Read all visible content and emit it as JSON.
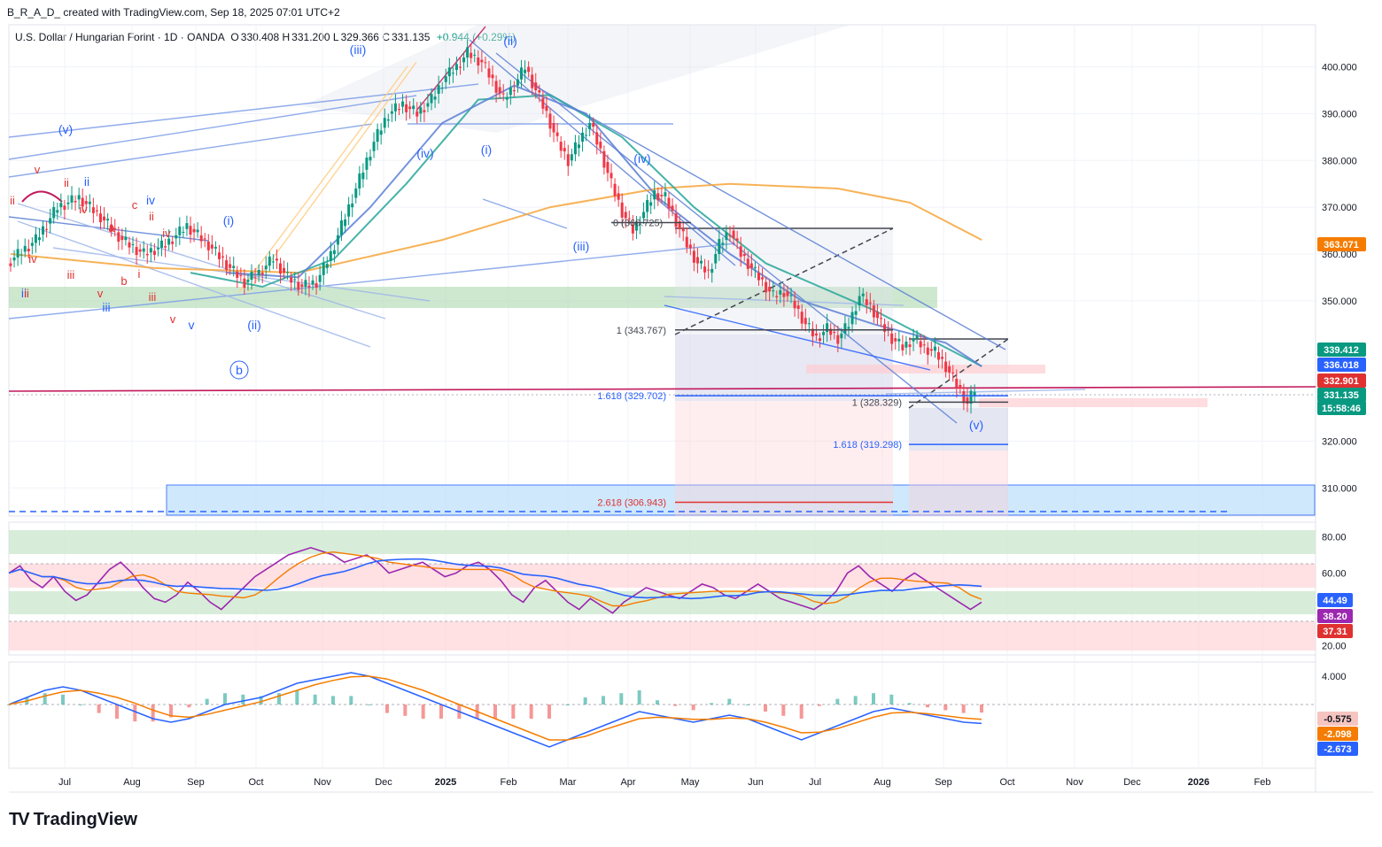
{
  "header": {
    "attribution": "B_R_A_D_ created with TradingView.com, Sep 18, 2025 07:01 UTC+2",
    "symbol": "U.S. Dollar / Hungarian Forint · 1D · OANDA",
    "o_label": "O",
    "o_value": "330.408",
    "h_label": "H",
    "h_value": "331.200",
    "l_label": "L",
    "l_value": "329.366",
    "c_label": "C",
    "c_value": "331.135",
    "change": "+0.944 (+0.29%)"
  },
  "brand": {
    "logo": "TV",
    "name": "TradingView"
  },
  "chart_data": {
    "type": "line",
    "price_axis": [
      "400.000",
      "390.000",
      "380.000",
      "370.000",
      "360.000",
      "350.000",
      "320.000",
      "310.000"
    ],
    "price_ticks": [
      400,
      390,
      380,
      370,
      360,
      350,
      320,
      310
    ],
    "ylim": [
      304,
      409
    ],
    "time_axis": [
      "Jul",
      "Aug",
      "Sep",
      "Oct",
      "Nov",
      "Dec",
      "2025",
      "Feb",
      "Mar",
      "Apr",
      "May",
      "Jun",
      "Jul",
      "Aug",
      "Sep",
      "Oct",
      "Nov",
      "Dec",
      "2026",
      "Feb"
    ],
    "price_path": [
      [
        0,
        358
      ],
      [
        8,
        363
      ],
      [
        14,
        370
      ],
      [
        20,
        372
      ],
      [
        26,
        368
      ],
      [
        32,
        363
      ],
      [
        38,
        360
      ],
      [
        44,
        362
      ],
      [
        50,
        366
      ],
      [
        56,
        362
      ],
      [
        62,
        357
      ],
      [
        66,
        354
      ],
      [
        70,
        356
      ],
      [
        74,
        359
      ],
      [
        78,
        355
      ],
      [
        82,
        353
      ],
      [
        86,
        354
      ],
      [
        90,
        360
      ],
      [
        94,
        368
      ],
      [
        98,
        376
      ],
      [
        102,
        384
      ],
      [
        106,
        390
      ],
      [
        110,
        392
      ],
      [
        114,
        390
      ],
      [
        118,
        393
      ],
      [
        122,
        398
      ],
      [
        125,
        400
      ],
      [
        128,
        403
      ],
      [
        132,
        401
      ],
      [
        135,
        397
      ],
      [
        138,
        393
      ],
      [
        141,
        396
      ],
      [
        144,
        400
      ],
      [
        147,
        395
      ],
      [
        150,
        390
      ],
      [
        153,
        384
      ],
      [
        156,
        380
      ],
      [
        159,
        384
      ],
      [
        162,
        388
      ],
      [
        165,
        382
      ],
      [
        168,
        375
      ],
      [
        171,
        369
      ],
      [
        174,
        365
      ],
      [
        177,
        369
      ],
      [
        180,
        373
      ],
      [
        183,
        372
      ],
      [
        186,
        367
      ],
      [
        189,
        362
      ],
      [
        192,
        358
      ],
      [
        195,
        356
      ],
      [
        198,
        362
      ],
      [
        201,
        365
      ],
      [
        204,
        360
      ],
      [
        207,
        357
      ],
      [
        210,
        354
      ],
      [
        213,
        351
      ],
      [
        216,
        352
      ],
      [
        219,
        349
      ],
      [
        222,
        345
      ],
      [
        225,
        342
      ],
      [
        228,
        344
      ],
      [
        231,
        342
      ],
      [
        234,
        345
      ],
      [
        237,
        351
      ],
      [
        240,
        349
      ],
      [
        243,
        345
      ],
      [
        246,
        342
      ],
      [
        249,
        340
      ],
      [
        252,
        342
      ],
      [
        255,
        340
      ],
      [
        258,
        339
      ],
      [
        261,
        336
      ],
      [
        264,
        332
      ],
      [
        267,
        328
      ],
      [
        269,
        331.135
      ]
    ],
    "price_path_note": "",
    "moving_averages": [
      {
        "name": "",
        "color": "#f6a43a",
        "points": [
          [
            0,
            360
          ],
          [
            40,
            357
          ],
          [
            80,
            356
          ],
          [
            120,
            363
          ],
          [
            150,
            370
          ],
          [
            180,
            374
          ],
          [
            200,
            375
          ],
          [
            230,
            374
          ],
          [
            250,
            371
          ],
          [
            270,
            363
          ]
        ]
      },
      {
        "name": "",
        "color": "#26a69a",
        "points": [
          [
            50,
            356
          ],
          [
            70,
            353
          ],
          [
            90,
            359
          ],
          [
            110,
            375
          ],
          [
            130,
            393
          ],
          [
            150,
            394
          ],
          [
            170,
            385
          ],
          [
            190,
            370
          ],
          [
            210,
            358
          ],
          [
            240,
            348
          ],
          [
            260,
            340
          ],
          [
            270,
            336
          ]
        ]
      },
      {
        "name": "",
        "color": "#5b7fd6",
        "points": [
          [
            60,
            356
          ],
          [
            80,
            355
          ],
          [
            100,
            370
          ],
          [
            120,
            388
          ],
          [
            140,
            396
          ],
          [
            160,
            390
          ],
          [
            180,
            372
          ],
          [
            200,
            360
          ],
          [
            220,
            350
          ],
          [
            240,
            345
          ],
          [
            260,
            341
          ],
          [
            270,
            336
          ]
        ]
      }
    ],
    "fib_levels": [
      {
        "label": "1 (343.767)",
        "value": 343.767,
        "color": "#434651"
      },
      {
        "label": "1 (328.329)",
        "value": 328.329,
        "color": "#434651"
      },
      {
        "label": "1.618 (329.702)",
        "value": 329.702,
        "color": "#2962ff"
      },
      {
        "label": "1.618 (319.298)",
        "value": 319.298,
        "color": "#2962ff"
      },
      {
        "label": "2.618 (306.943)",
        "value": 306.943,
        "color": "#e03131"
      },
      {
        "label": "0 (366.725)",
        "value": 366.725,
        "color": "#434651"
      }
    ],
    "price_badges": [
      {
        "value": "363.071",
        "color": "#f57c00"
      },
      {
        "value": "339.412",
        "color": "#089981"
      },
      {
        "value": "336.018",
        "color": "#2962ff"
      },
      {
        "value": "332.901",
        "color": "#e03131"
      },
      {
        "value": "331.135",
        "color": "#089981"
      },
      {
        "value": "15:58:46",
        "color": "#089981"
      }
    ],
    "wave_labels_blue": [
      "(v)",
      "(iii)",
      "(ii)",
      "(iv)",
      "(i)",
      "(i)",
      "(iv)",
      "(iii)",
      "(ii)",
      "(v)",
      "ii",
      "iv",
      "iii",
      "v",
      "ii"
    ],
    "wave_labels_red": [
      "v",
      "ii",
      "ii",
      "iv",
      "c",
      "a",
      "b",
      "i",
      "iv",
      "iii",
      "iii",
      "ii",
      "v",
      "iv",
      "ii",
      "v"
    ],
    "circle_label": "b",
    "rsi": {
      "axis": [
        "80.00",
        "60.00",
        "20.00"
      ],
      "ticks": [
        80,
        60,
        20
      ],
      "ylim": [
        15,
        88
      ],
      "values": [
        60,
        64,
        56,
        52,
        58,
        50,
        45,
        48,
        55,
        62,
        66,
        60,
        52,
        46,
        44,
        48,
        55,
        50,
        44,
        40,
        46,
        52,
        58,
        62,
        66,
        70,
        72,
        74,
        72,
        70,
        66,
        68,
        70,
        66,
        60,
        62,
        64,
        66,
        62,
        58,
        60,
        64,
        66,
        62,
        56,
        48,
        44,
        52,
        56,
        50,
        44,
        40,
        46,
        42,
        38,
        44,
        48,
        52,
        50,
        48,
        46,
        50,
        54,
        52,
        48,
        46,
        50,
        54,
        50,
        46,
        44,
        42,
        40,
        44,
        50,
        60,
        64,
        58,
        54,
        50,
        56,
        60,
        56,
        52,
        48,
        44,
        40,
        44
      ],
      "badges": [
        {
          "value": "44.49",
          "color": "#2962ff"
        },
        {
          "value": "38.20",
          "color": "#9c27b0"
        },
        {
          "value": "37.31",
          "color": "#e03131"
        }
      ]
    },
    "macd": {
      "axis": [
        "4.000"
      ],
      "ticks": [
        4
      ],
      "ylim": [
        -9,
        6
      ],
      "macd_line": [
        0,
        1,
        2,
        2.5,
        2,
        1,
        0,
        -1,
        -2,
        -2.5,
        -2,
        -1,
        0,
        0.5,
        1,
        2,
        3,
        3.5,
        4,
        4.5,
        4,
        3,
        2,
        1,
        0,
        -1,
        -2,
        -3,
        -4,
        -5,
        -6,
        -5,
        -4,
        -3,
        -2,
        -1,
        -1.5,
        -2,
        -2.5,
        -2,
        -1.5,
        -2,
        -3,
        -4,
        -5,
        -4,
        -3,
        -2,
        -1,
        -0.5,
        -1,
        -1.5,
        -2,
        -2.5,
        -2.67
      ],
      "signal_line": [
        0,
        0.5,
        1.2,
        1.8,
        2,
        1.6,
        1,
        0.2,
        -0.8,
        -1.6,
        -1.8,
        -1.4,
        -0.8,
        -0.2,
        0.4,
        1.2,
        2,
        2.8,
        3.4,
        3.9,
        4,
        3.6,
        2.8,
        2,
        1,
        0,
        -1,
        -2,
        -3,
        -4,
        -5,
        -5,
        -4.5,
        -3.6,
        -2.8,
        -2,
        -1.8,
        -1.9,
        -2.1,
        -2.1,
        -1.9,
        -2,
        -2.5,
        -3.2,
        -4,
        -3.9,
        -3.4,
        -2.6,
        -1.8,
        -1.2,
        -1.1,
        -1.3,
        -1.6,
        -1.9,
        -2.098
      ],
      "badges": [
        {
          "value": "-0.575",
          "color": "#f7c5c0",
          "text": "#131722"
        },
        {
          "value": "-2.098",
          "color": "#f57c00",
          "text": "#ffffff"
        },
        {
          "value": "-2.673",
          "color": "#2962ff",
          "text": "#ffffff"
        }
      ]
    }
  }
}
